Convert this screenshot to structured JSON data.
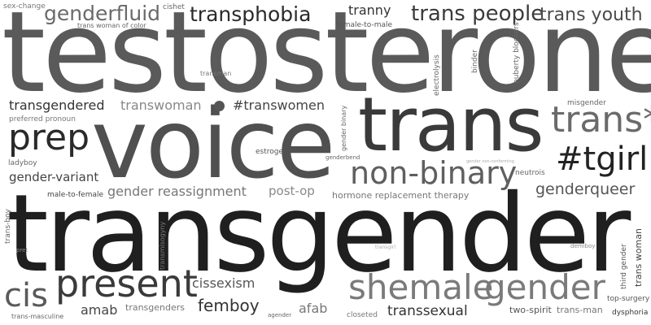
{
  "cloud": {
    "words": [
      {
        "text": "testosterone",
        "color": "#5a5a5a"
      },
      {
        "text": "voice",
        "color": "#505050"
      },
      {
        "text": "transgender",
        "color": "#1f1f1f"
      },
      {
        "text": "trans",
        "color": "#3a3a3a"
      },
      {
        "text": "trans*",
        "color": "#6a6a6a"
      },
      {
        "text": "non-binary",
        "color": "#5f5f5f"
      },
      {
        "text": "#tgirl",
        "color": "#222222"
      },
      {
        "text": "prep",
        "color": "#2a2a2a"
      },
      {
        "text": "present",
        "color": "#3a3a3a"
      },
      {
        "text": "shemale",
        "color": "#7a7a7a"
      },
      {
        "text": "gender",
        "color": "#7a7a7a"
      },
      {
        "text": "cis",
        "color": "#5a5a5a"
      },
      {
        "text": "trans people",
        "color": "#3a3a3a"
      },
      {
        "text": "trans youth",
        "color": "#4a4a4a"
      },
      {
        "text": "transphobia",
        "color": "#2a2a2a"
      },
      {
        "text": "genderfluid",
        "color": "#6a6a6a"
      },
      {
        "text": "tranny",
        "color": "#333333"
      },
      {
        "text": "female-to-male",
        "color": "#555555"
      },
      {
        "text": "sex-change",
        "color": "#777777"
      },
      {
        "text": "cishet",
        "color": "#666666"
      },
      {
        "text": "trans woman of color",
        "color": "#666666"
      },
      {
        "text": "transman",
        "color": "#777777"
      },
      {
        "text": "transgendered",
        "color": "#333333"
      },
      {
        "text": "transwoman",
        "color": "#888888"
      },
      {
        "text": "#transwomen",
        "color": "#444444"
      },
      {
        "text": "preferred pronoun",
        "color": "#777777"
      },
      {
        "text": "misgender",
        "color": "#666666"
      },
      {
        "text": "estrogen",
        "color": "#555555"
      },
      {
        "text": "genderbend",
        "color": "#666666"
      },
      {
        "text": "gender non-conforming",
        "color": "#aaaaaa"
      },
      {
        "text": "ladyboy",
        "color": "#666666"
      },
      {
        "text": "gender-variant",
        "color": "#444444"
      },
      {
        "text": "neutrois",
        "color": "#666666"
      },
      {
        "text": "male-to-female",
        "color": "#444444"
      },
      {
        "text": "gender reassignment",
        "color": "#777777"
      },
      {
        "text": "post-op",
        "color": "#888888"
      },
      {
        "text": "hormone replacement therapy",
        "color": "#777777"
      },
      {
        "text": "genderqueer",
        "color": "#555555"
      },
      {
        "text": "pret",
        "color": "#888888"
      },
      {
        "text": "transgirl",
        "color": "#aaaaaa"
      },
      {
        "text": "demiboy",
        "color": "#888888"
      },
      {
        "text": "cissexism",
        "color": "#555555"
      },
      {
        "text": "femboy",
        "color": "#333333"
      },
      {
        "text": "amab",
        "color": "#444444"
      },
      {
        "text": "transgenders",
        "color": "#777777"
      },
      {
        "text": "afab",
        "color": "#777777"
      },
      {
        "text": "transsexual",
        "color": "#333333"
      },
      {
        "text": "two-spirit",
        "color": "#555555"
      },
      {
        "text": "trans-man",
        "color": "#777777"
      },
      {
        "text": "top-surgery",
        "color": "#555555"
      },
      {
        "text": "dysphoria",
        "color": "#333333"
      },
      {
        "text": "trans-masculine",
        "color": "#666666"
      },
      {
        "text": "agender",
        "color": "#666666"
      },
      {
        "text": "closeted",
        "color": "#777777"
      },
      {
        "text": "electrolysis",
        "color": "#666666"
      },
      {
        "text": "binder",
        "color": "#666666"
      },
      {
        "text": "puberty blockers",
        "color": "#666666"
      },
      {
        "text": "gender binary",
        "color": "#666666"
      },
      {
        "text": "trans-boy",
        "color": "#666666"
      },
      {
        "text": "transmisogyny",
        "color": "#777777"
      },
      {
        "text": "third gender",
        "color": "#555555"
      },
      {
        "text": "trans woman",
        "color": "#444444"
      }
    ]
  }
}
